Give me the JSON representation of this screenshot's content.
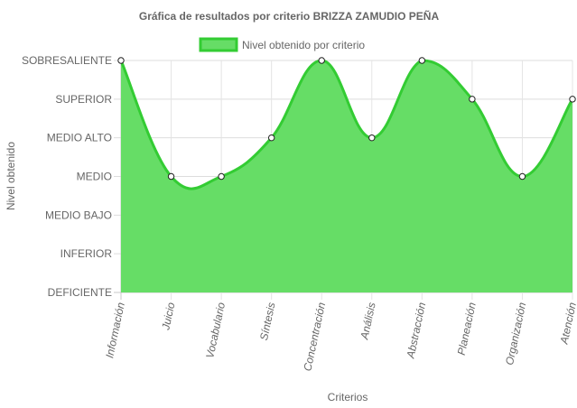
{
  "chart_data": {
    "type": "area",
    "title": "Gráfica de resultados por criterio BRIZZA ZAMUDIO PEÑA",
    "xlabel": "Criterios",
    "ylabel": "Nivel obtenido",
    "categories": [
      "Información",
      "Juicio",
      "Vocabulario",
      "Síntesis",
      "Concentración",
      "Análisis",
      "Abstracción",
      "Planeación",
      "Organización",
      "Atención"
    ],
    "levels": [
      "DEFICIENTE",
      "INFERIOR",
      "MEDIO BAJO",
      "MEDIO",
      "MEDIO ALTO",
      "SUPERIOR",
      "SOBRESALIENTE"
    ],
    "series": [
      {
        "name": "Nivel obtenido por criterio",
        "values": [
          6,
          3,
          3,
          4,
          6,
          4,
          6,
          5,
          3,
          5
        ],
        "color": "#33cc33",
        "fill": "#66dd66"
      }
    ],
    "ylim": [
      0,
      6
    ],
    "grid": true,
    "legend": "top"
  }
}
